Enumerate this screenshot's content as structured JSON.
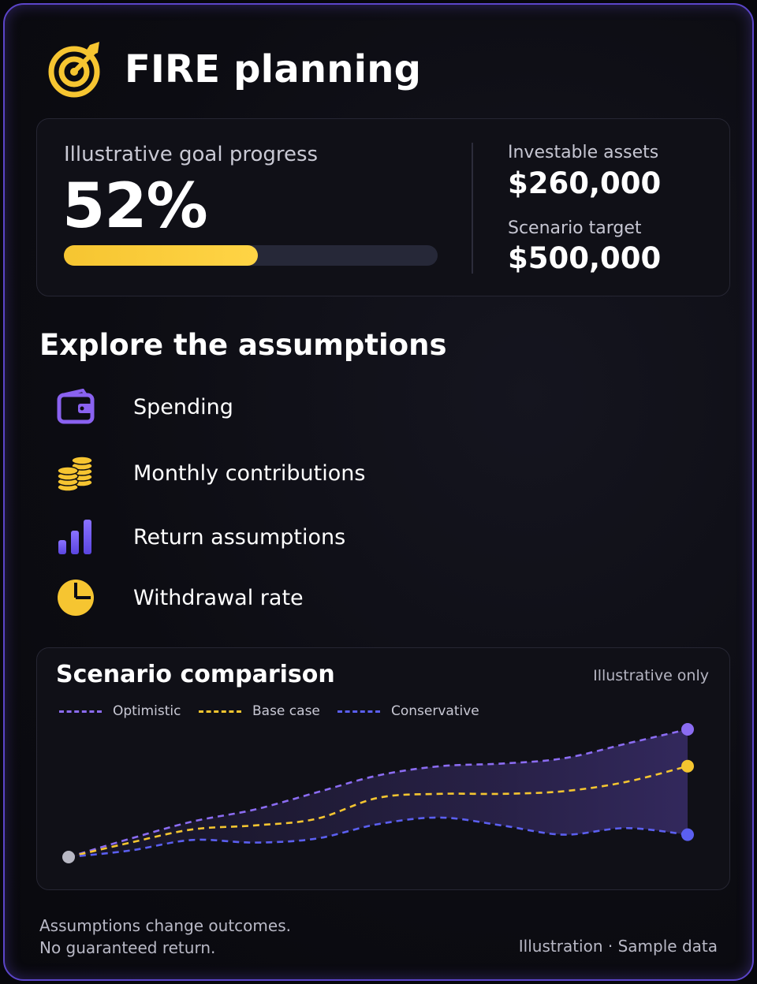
{
  "header": {
    "title": "FIRE planning",
    "icon": "target-arrow-icon"
  },
  "progress": {
    "label": "Illustrative goal progress",
    "percent_text": "52%",
    "fraction": 0.52,
    "assets_label": "Investable assets",
    "assets_value": "$260,000",
    "target_label": "Scenario target",
    "target_value": "$500,000"
  },
  "assumptions": {
    "title": "Explore the assumptions",
    "items": [
      {
        "label": "Spending",
        "icon": "wallet-icon"
      },
      {
        "label": "Monthly contributions",
        "icon": "coin-stacks-icon"
      },
      {
        "label": "Return assumptions",
        "icon": "bar-chart-icon"
      },
      {
        "label": "Withdrawal rate",
        "icon": "pie-chart-icon"
      }
    ]
  },
  "chart_data": {
    "type": "line",
    "title": "Scenario comparison",
    "note": "Illustrative only",
    "legend_position": "top-left",
    "grid": false,
    "x": [
      0,
      1,
      2,
      3,
      4,
      5,
      6,
      7,
      8,
      9,
      10
    ],
    "ylim": [
      0,
      100
    ],
    "series": [
      {
        "name": "Optimistic",
        "color": "#8b6cf2",
        "values": [
          0,
          14,
          27,
          36,
          49,
          62,
          69,
          71,
          75,
          86,
          97
        ]
      },
      {
        "name": "Base case",
        "color": "#f4c530",
        "values": [
          0,
          11,
          21,
          24,
          29,
          45,
          48,
          48,
          50,
          57,
          69
        ]
      },
      {
        "name": "Conservative",
        "color": "#5b5ff0",
        "values": [
          0,
          5,
          13,
          11,
          14,
          25,
          30,
          24,
          17,
          22,
          17
        ]
      }
    ]
  },
  "colors": {
    "accent_yellow": "#f6c531",
    "accent_purple": "#7c5cf0",
    "background": "#0c0c12"
  },
  "footer": {
    "disclaimer_line1": "Assumptions change outcomes.",
    "disclaimer_line2": "No guaranteed return.",
    "source": "Illustration · Sample data"
  }
}
